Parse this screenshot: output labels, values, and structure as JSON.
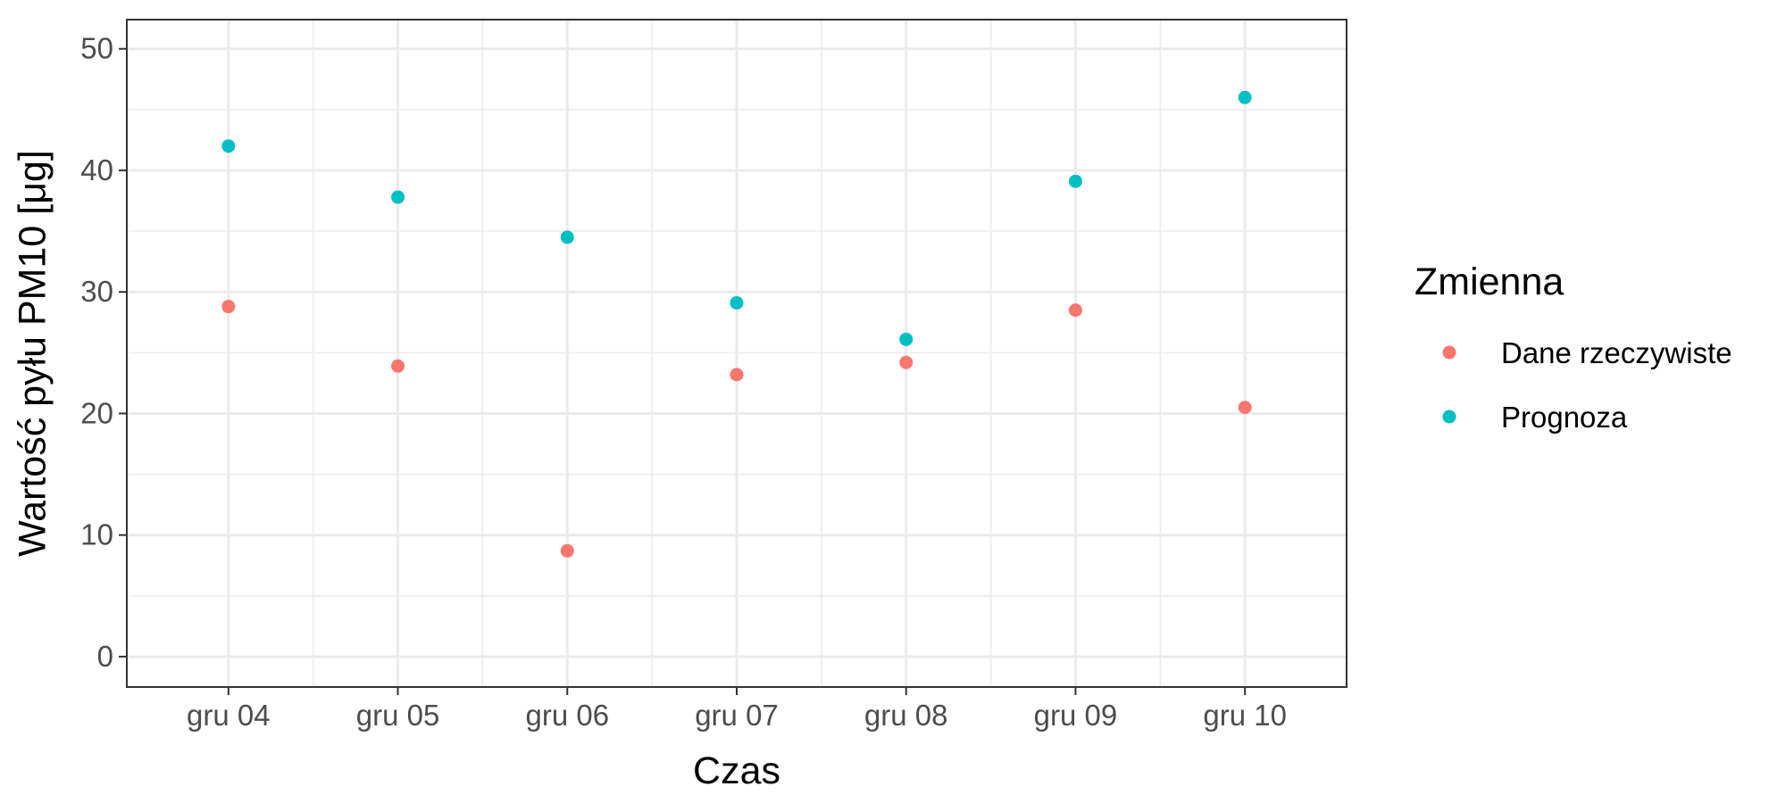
{
  "chart_data": {
    "type": "scatter",
    "title": "",
    "xlabel": "Czas",
    "ylabel": "Wartość pyłu PM10 [μg]",
    "categories": [
      "gru 04",
      "gru 05",
      "gru 06",
      "gru 07",
      "gru 08",
      "gru 09",
      "gru 10"
    ],
    "ylim": [
      -2.5,
      52.4
    ],
    "yticks": [
      0,
      10,
      20,
      30,
      40,
      50
    ],
    "grid": true,
    "legend": {
      "title": "Zmienna",
      "position": "right"
    },
    "series": [
      {
        "name": "Dane rzeczywiste",
        "color": "#F8766D",
        "values": [
          28.8,
          23.9,
          8.7,
          23.2,
          24.2,
          28.5,
          20.5
        ]
      },
      {
        "name": "Prognoza",
        "color": "#00BFC4",
        "values": [
          42.0,
          37.8,
          34.5,
          29.1,
          26.1,
          39.1,
          46.0
        ]
      }
    ]
  }
}
